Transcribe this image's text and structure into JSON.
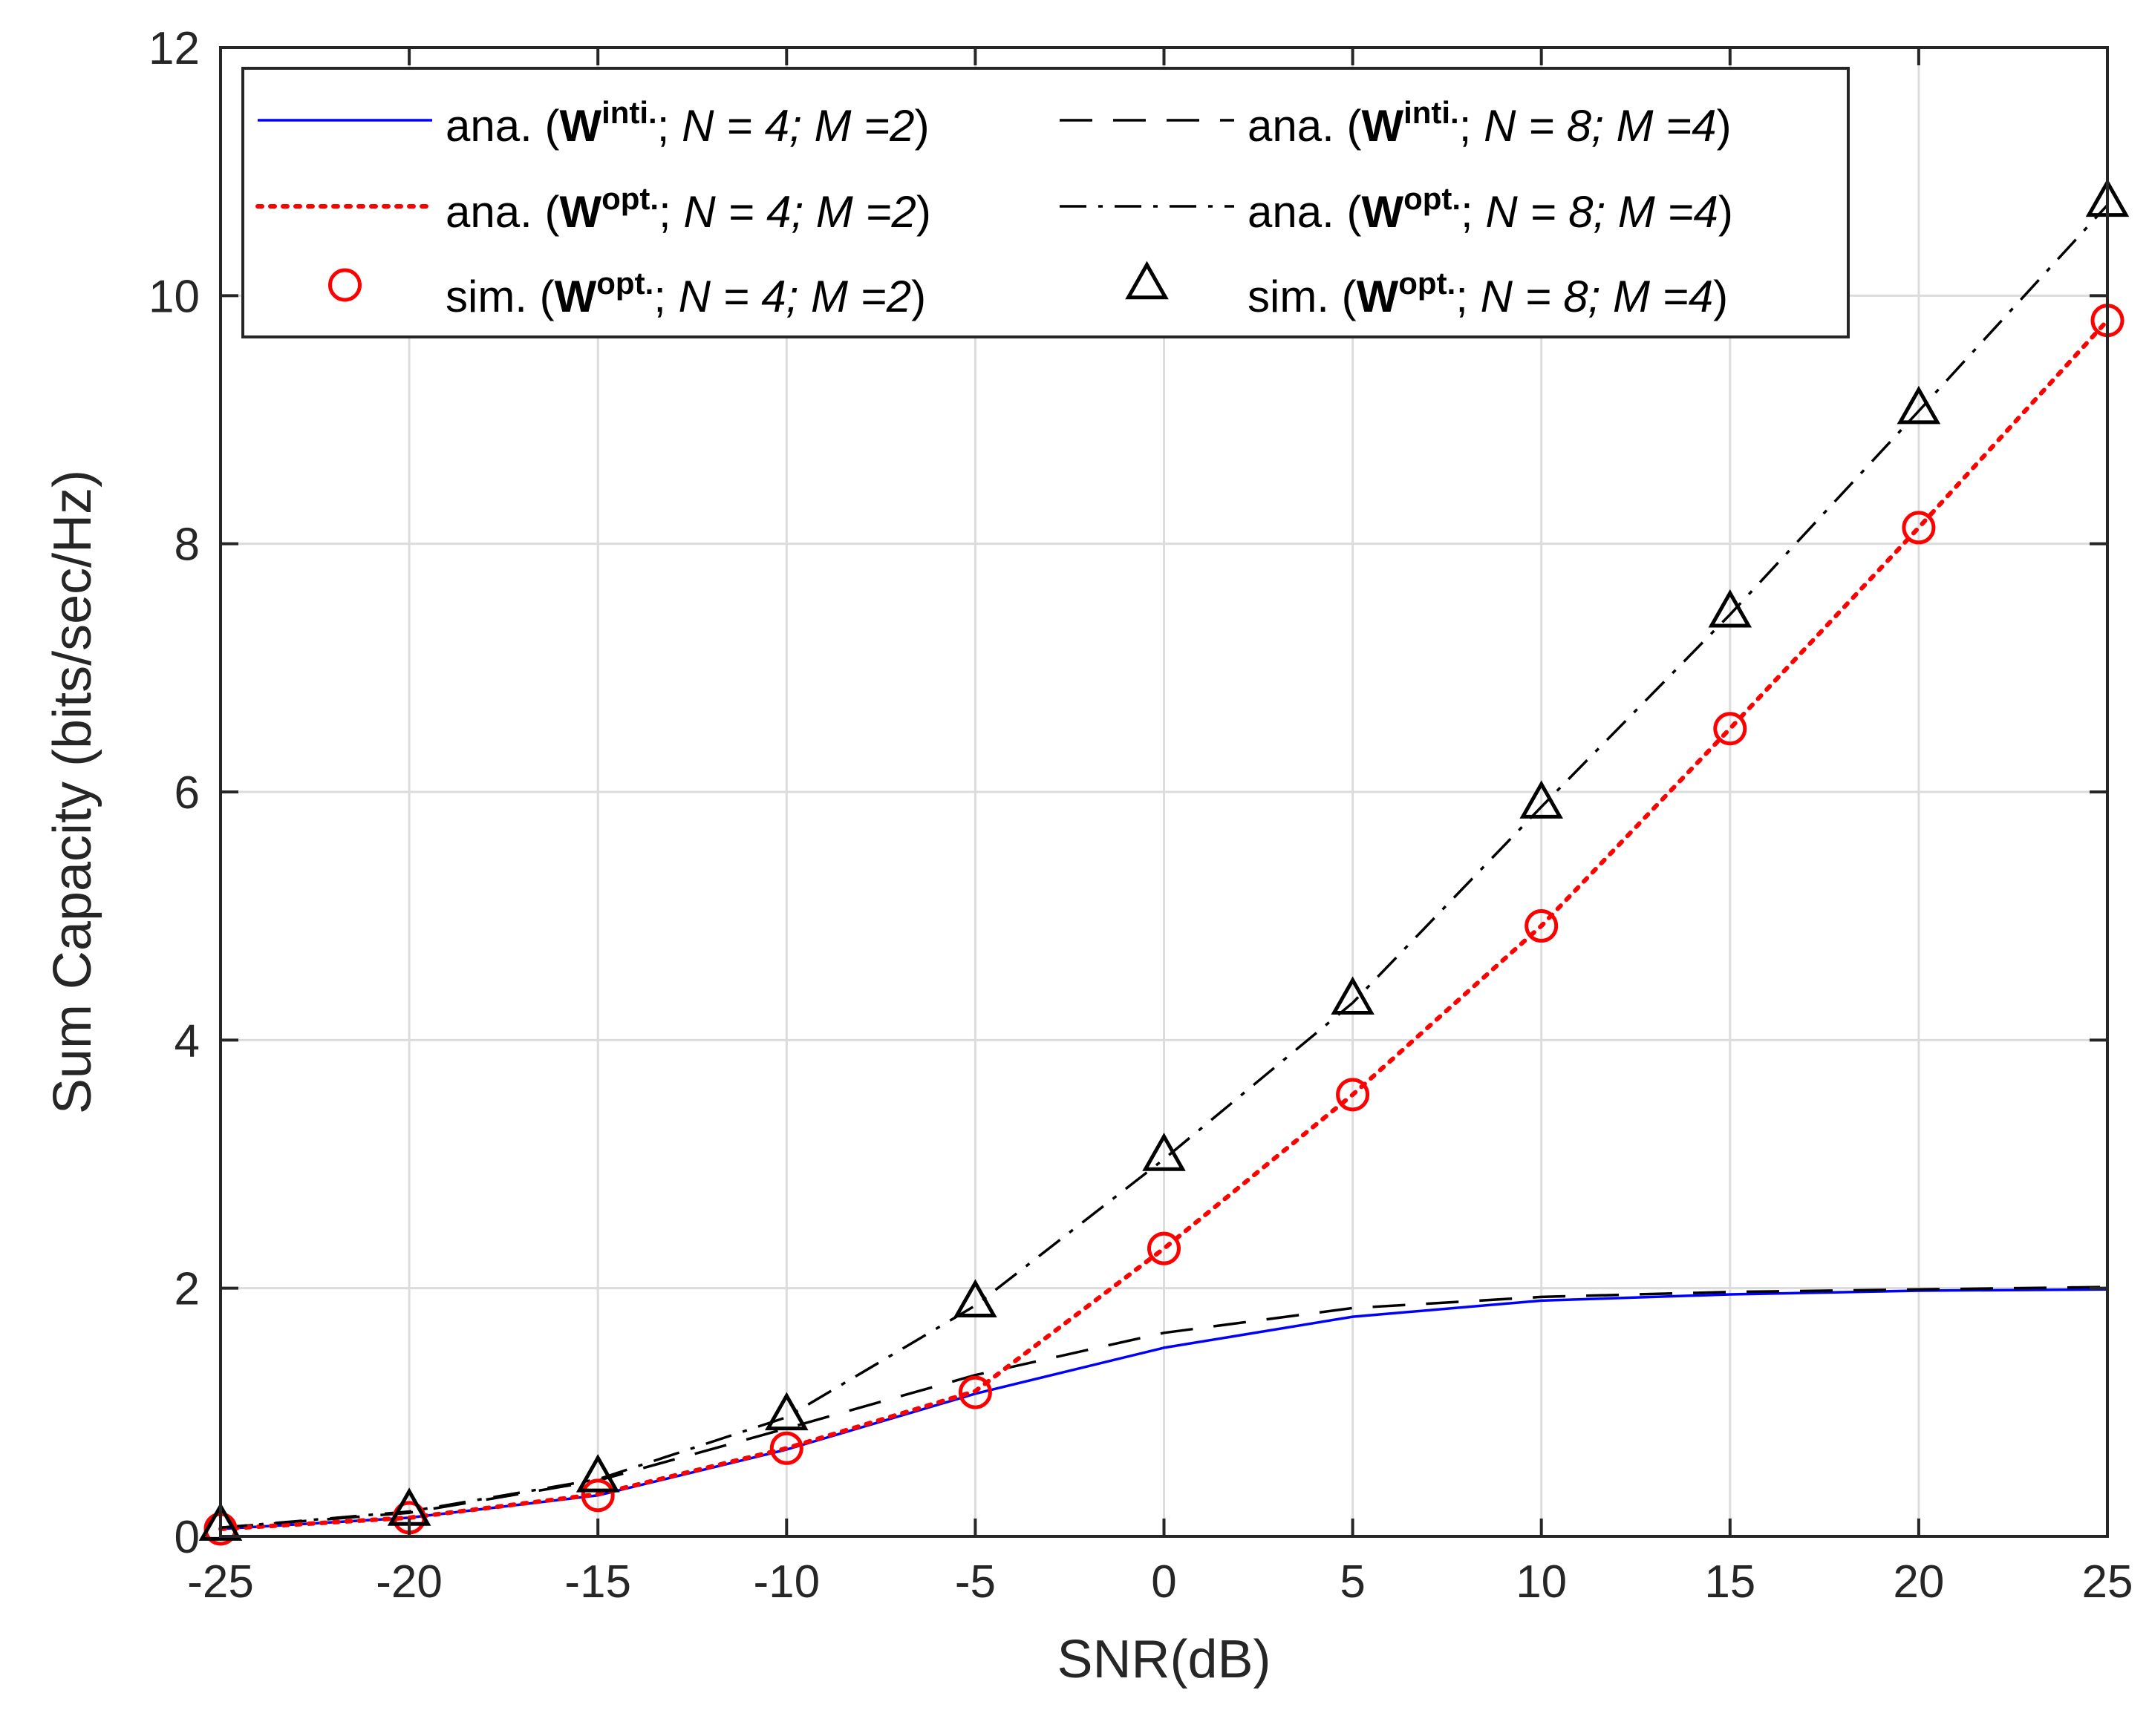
{
  "chart_data": {
    "type": "line",
    "title": "",
    "xlabel": "SNR(dB)",
    "ylabel": "Sum Capacity (bits/sec/Hz)",
    "xlim": [
      -25,
      25
    ],
    "ylim": [
      0,
      12
    ],
    "xticks": [
      -25,
      -20,
      -15,
      -10,
      -5,
      0,
      5,
      10,
      15,
      20,
      25
    ],
    "xtick_labels": [
      "-25",
      "-20",
      "-15",
      "-10",
      "-5",
      "0",
      "5",
      "10",
      "15",
      "20",
      "25"
    ],
    "yticks": [
      0,
      2,
      4,
      6,
      8,
      10,
      12
    ],
    "ytick_labels": [
      "0",
      "2",
      "4",
      "6",
      "8",
      "10",
      "12"
    ],
    "grid": true,
    "legend_position": "top",
    "x": [
      -25,
      -20,
      -15,
      -10,
      -5,
      0,
      5,
      10,
      15,
      20,
      25
    ],
    "series": [
      {
        "id": "ana-winit-n4",
        "name": "ana. (Winti.; N = 4; M =2)",
        "legend": {
          "prefix": "ana. (",
          "mat": "W",
          "sup": "inti.",
          "sep": "; ",
          "params": "N = 4; M =2",
          "suffix": ")"
        },
        "color": "#0000ff",
        "style": "solid",
        "marker": "none",
        "values": [
          0.06,
          0.15,
          0.33,
          0.7,
          1.15,
          1.52,
          1.77,
          1.9,
          1.95,
          1.98,
          1.99
        ]
      },
      {
        "id": "ana-winit-n8",
        "name": "ana. (Winti.; N = 8; M =4)",
        "legend": {
          "prefix": "ana. (",
          "mat": "W",
          "sup": "inti.",
          "sep": "; ",
          "params": "N = 8; M =4",
          "suffix": ")"
        },
        "color": "#000000",
        "style": "dashed",
        "marker": "none",
        "values": [
          0.07,
          0.19,
          0.45,
          0.87,
          1.3,
          1.64,
          1.84,
          1.93,
          1.97,
          1.99,
          2.01
        ]
      },
      {
        "id": "ana-wopt-n4",
        "name": "ana. (Wopt.; N = 4; M =2)",
        "legend": {
          "prefix": "ana. (",
          "mat": "W",
          "sup": "opt.",
          "sep": "; ",
          "params": "N = 4; M =2",
          "suffix": ")"
        },
        "color": "#ff0000",
        "style": "dotted",
        "marker": "none",
        "values": [
          0.06,
          0.15,
          0.34,
          0.71,
          1.17,
          2.32,
          3.56,
          4.92,
          6.51,
          8.13,
          9.8
        ]
      },
      {
        "id": "ana-wopt-n8",
        "name": "ana. (Wopt.; N = 8; M =4)",
        "legend": {
          "prefix": "ana. (",
          "mat": "W",
          "sup": "opt.",
          "sep": "; ",
          "params": "N = 8; M =4",
          "suffix": ")"
        },
        "color": "#000000",
        "style": "dashdot",
        "marker": "none",
        "values": [
          0.07,
          0.2,
          0.46,
          0.96,
          1.86,
          3.04,
          4.3,
          5.88,
          7.43,
          9.07,
          10.73
        ]
      },
      {
        "id": "sim-wopt-n4",
        "name": "sim. (Wopt.; N = 4; M =2)",
        "legend": {
          "prefix": "sim. (",
          "mat": "W",
          "sup": "opt.",
          "sep": "; ",
          "params": "N = 4; M =2",
          "suffix": ")"
        },
        "color": "#ff0000",
        "style": "none",
        "marker": "circle",
        "values": [
          0.06,
          0.15,
          0.33,
          0.71,
          1.16,
          2.32,
          3.56,
          4.92,
          6.51,
          8.13,
          9.8
        ]
      },
      {
        "id": "sim-wopt-n8",
        "name": "sim. (Wopt.; N = 8; M =4)",
        "legend": {
          "prefix": "sim. (",
          "mat": "W",
          "sup": "opt.",
          "sep": "; ",
          "params": "N = 8; M =4",
          "suffix": ")"
        },
        "color": "#000000",
        "style": "none",
        "marker": "triangle",
        "values": [
          0.08,
          0.2,
          0.47,
          0.97,
          1.88,
          3.06,
          4.32,
          5.9,
          7.44,
          9.08,
          10.75
        ]
      }
    ],
    "legend_order": [
      "ana-winit-n4",
      "ana-winit-n8",
      "ana-wopt-n4",
      "ana-wopt-n8",
      "sim-wopt-n4",
      "sim-wopt-n8"
    ]
  }
}
